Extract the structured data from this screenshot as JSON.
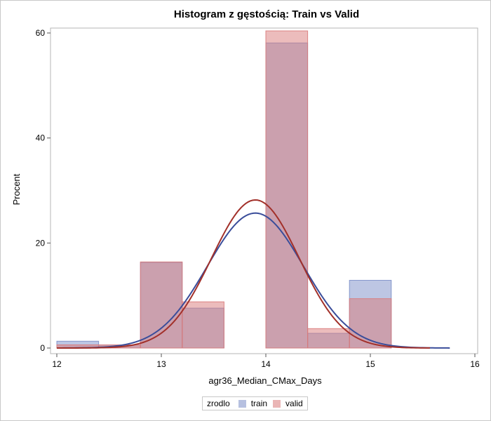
{
  "chart_data": {
    "type": "histogram",
    "title": "Histogram z gęstością: Train vs Valid",
    "xlabel": "agr36_Median_CMax_Days",
    "ylabel": "Procent",
    "xlim": [
      12,
      16
    ],
    "ylim": [
      0,
      60
    ],
    "x_ticks": [
      "12",
      "13",
      "14",
      "15",
      "16"
    ],
    "y_ticks": [
      "0",
      "20",
      "40",
      "60"
    ],
    "bin_width": 0.4,
    "bin_starts": [
      12.0,
      12.4,
      12.8,
      13.2,
      13.6,
      14.0,
      14.4,
      14.8
    ],
    "legend": {
      "title": "zrodlo",
      "position": "bottom"
    },
    "series": [
      {
        "name": "train",
        "color": "#7b8ec8",
        "curve_color": "#3a4d9a",
        "values": [
          1.3,
          0.6,
          16.3,
          7.6,
          0,
          58.1,
          2.8,
          12.9
        ],
        "density": {
          "mean": 13.9,
          "sd": 0.46,
          "peak": 25.7,
          "range": [
            12.0,
            15.76
          ]
        }
      },
      {
        "name": "valid",
        "color": "#d97a7a",
        "curve_color": "#a2302a",
        "values": [
          0.6,
          0.6,
          16.4,
          8.8,
          0,
          60.4,
          3.7,
          9.4
        ],
        "density": {
          "mean": 13.9,
          "sd": 0.42,
          "peak": 28.2,
          "range": [
            12.0,
            15.57
          ]
        }
      }
    ]
  }
}
